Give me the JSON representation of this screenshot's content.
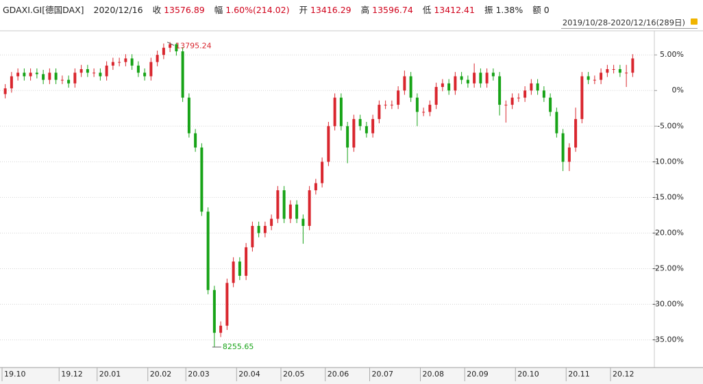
{
  "header": {
    "code": "GDAXI.GI[德国DAX]",
    "date": "2020/12/16",
    "fields": [
      {
        "label": "收",
        "value": "13576.89",
        "color": "#d0021b"
      },
      {
        "label": "幅",
        "value": "1.60%(214.02)",
        "color": "#d0021b"
      },
      {
        "label": "开",
        "value": "13416.29",
        "color": "#d0021b"
      },
      {
        "label": "高",
        "value": "13596.74",
        "color": "#d0021b"
      },
      {
        "label": "低",
        "value": "13412.41",
        "color": "#d0021b"
      },
      {
        "label": "振",
        "value": "1.38%",
        "color": "#222222"
      },
      {
        "label": "额",
        "value": "0",
        "color": "#222222"
      }
    ]
  },
  "range_label": "2019/10/28-2020/12/16(289日)",
  "chart_data": {
    "type": "candlestick",
    "max_label": "13795.24",
    "min_label": "8255.65",
    "up_color": "#d9262e",
    "down_color": "#17a317",
    "grid": true,
    "ylim": [
      -38.4,
      7.9
    ],
    "yticks": [
      {
        "value": 5,
        "label": "5.00%"
      },
      {
        "value": 0,
        "label": "0%"
      },
      {
        "value": -5,
        "label": "-5.00%"
      },
      {
        "value": -10,
        "label": "-10.00%"
      },
      {
        "value": -15,
        "label": "-15.00%"
      },
      {
        "value": -20,
        "label": "-20.00%"
      },
      {
        "value": -25,
        "label": "-25.00%"
      },
      {
        "value": -30,
        "label": "-30.00%"
      },
      {
        "value": -35,
        "label": "-35.00%"
      }
    ],
    "categories": [
      "19.10",
      null,
      null,
      null,
      null,
      null,
      null,
      null,
      null,
      "19.12",
      null,
      null,
      null,
      null,
      null,
      "20.01",
      null,
      null,
      null,
      null,
      null,
      null,
      null,
      "20.02",
      null,
      null,
      null,
      null,
      null,
      "20.03",
      null,
      null,
      null,
      null,
      null,
      null,
      null,
      "20.04",
      null,
      null,
      null,
      null,
      null,
      null,
      "20.05",
      null,
      null,
      null,
      null,
      null,
      null,
      "20.06",
      null,
      null,
      null,
      null,
      null,
      null,
      "20.07",
      null,
      null,
      null,
      null,
      null,
      null,
      null,
      "20.08",
      null,
      null,
      null,
      null,
      null,
      null,
      "20.09",
      null,
      null,
      null,
      null,
      null,
      null,
      null,
      "20.10",
      null,
      null,
      null,
      null,
      null,
      null,
      null,
      "20.11",
      null,
      null,
      null,
      null,
      null,
      null,
      "20.12",
      null,
      null,
      null
    ],
    "open": [
      -0.5,
      0.3,
      2,
      2.5,
      2,
      2.5,
      2.3,
      1.5,
      2.5,
      1.5,
      1.5,
      1,
      2.5,
      3,
      2.5,
      2.5,
      2,
      3.5,
      4,
      4,
      4.5,
      3.5,
      2.5,
      2,
      4,
      5,
      6,
      6.5,
      5.5,
      -1,
      -6,
      -8,
      -17,
      -28,
      -34,
      -33,
      -27,
      -24,
      -26,
      -22,
      -19,
      -20,
      -19,
      -18,
      -14,
      -18,
      -16,
      -18,
      -19,
      -14,
      -13,
      -10,
      -5,
      -1,
      -5,
      -8,
      -4,
      -5,
      -6,
      -4,
      -2,
      -2,
      -2,
      0,
      2,
      -1,
      -3,
      -3,
      -2,
      0.5,
      1,
      0,
      2,
      1.5,
      1,
      2.5,
      1,
      2.5,
      2,
      -2,
      -2,
      -1,
      -1,
      0,
      1,
      0,
      -1,
      -3,
      -6,
      -10,
      -8,
      -4,
      2,
      1.5,
      1.5,
      2.5,
      3,
      3,
      2.5,
      2.5
    ],
    "high": [
      0.9,
      2.6,
      3.1,
      3.1,
      3.1,
      3.1,
      2.9,
      3.1,
      3.1,
      2.1,
      2.1,
      3.1,
      3.6,
      3.6,
      3.1,
      3.1,
      4.1,
      4.6,
      4.6,
      5.1,
      5.1,
      4.1,
      3.1,
      4.6,
      5.6,
      6.6,
      6.8,
      6.7,
      6.1,
      -0.4,
      -5.4,
      -7.4,
      -16.4,
      -27.4,
      -32.4,
      -26.4,
      -23.4,
      -23.4,
      -21.4,
      -18.4,
      -18.4,
      -18.4,
      -17.4,
      -13.4,
      -13.4,
      -15.4,
      -15.4,
      -17.4,
      -13.4,
      -12.4,
      -9.4,
      -4.4,
      -0.4,
      -0.4,
      -4.4,
      -3.4,
      -3.4,
      -4.4,
      -3.4,
      -1.4,
      -1.4,
      -1.4,
      0.6,
      2.8,
      2.6,
      -0.4,
      -2.4,
      -1.4,
      1.1,
      1.6,
      1.6,
      2.6,
      2.6,
      2.1,
      3.8,
      3.1,
      3.1,
      3.1,
      2.6,
      -1.4,
      -0.4,
      -0.4,
      0.6,
      1.6,
      1.6,
      0.6,
      -0.4,
      -2.4,
      -5.4,
      -7.4,
      -2.4,
      2.6,
      2.6,
      2.1,
      3.1,
      3.6,
      3.6,
      3.6,
      3.6,
      5.1
    ],
    "low": [
      -1.1,
      -0.3,
      1.4,
      1.4,
      1.4,
      1.7,
      0.9,
      0.9,
      0.9,
      0.9,
      0.4,
      0.4,
      1.9,
      1.9,
      1.9,
      1.4,
      1.4,
      2.9,
      3.4,
      3.4,
      2.9,
      1.9,
      1.4,
      1.4,
      3.4,
      4.4,
      5.4,
      4.9,
      -1.6,
      -6.6,
      -8.6,
      -17.6,
      -28.6,
      -36,
      -34.6,
      -33.6,
      -27.6,
      -26.6,
      -26.6,
      -22.6,
      -20.6,
      -20.6,
      -19.6,
      -18.6,
      -18.6,
      -18.6,
      -18.6,
      -21.5,
      -19.6,
      -14.6,
      -13.6,
      -10.6,
      -5.6,
      -5.6,
      -10.2,
      -8.6,
      -5.6,
      -6.6,
      -6.6,
      -4.6,
      -2.6,
      -2.6,
      -2.6,
      -0.6,
      -1.6,
      -5,
      -3.6,
      -3.6,
      -2.6,
      -0.1,
      -0.6,
      -0.6,
      0.9,
      0.4,
      0.4,
      0.4,
      0.4,
      1.4,
      -3.5,
      -4.5,
      -2.6,
      -1.6,
      -1.6,
      -0.6,
      -0.6,
      -1.6,
      -3.6,
      -6.6,
      -11.3,
      -11.3,
      -8.6,
      -4.6,
      0.9,
      0.9,
      0.9,
      1.9,
      2.4,
      1.9,
      0.5,
      1.9
    ],
    "close": [
      0.3,
      2,
      2.5,
      2,
      2.5,
      2.3,
      1.5,
      2.5,
      1.5,
      1.5,
      1,
      2.5,
      3,
      2.5,
      2.5,
      2,
      3.5,
      4,
      4,
      4.5,
      3.5,
      2.5,
      2,
      4,
      5,
      6,
      6.5,
      5.5,
      -1,
      -6,
      -8,
      -17,
      -28,
      -34,
      -33,
      -27,
      -24,
      -26,
      -22,
      -19,
      -20,
      -19,
      -18,
      -14,
      -18,
      -16,
      -18,
      -19,
      -14,
      -13,
      -10,
      -5,
      -1,
      -5,
      -8,
      -4,
      -5,
      -6,
      -4,
      -2,
      -2,
      -2,
      0,
      2,
      -1,
      -3,
      -3,
      -2,
      0.5,
      1,
      0,
      2,
      1.5,
      1,
      2.5,
      1,
      2.5,
      2,
      -2,
      -2,
      -1,
      -1,
      0,
      1,
      0,
      -1,
      -3,
      -6,
      -10,
      -8,
      -4,
      2,
      1.5,
      1.5,
      2.5,
      3,
      3,
      2.5,
      2.5,
      4.5
    ]
  }
}
